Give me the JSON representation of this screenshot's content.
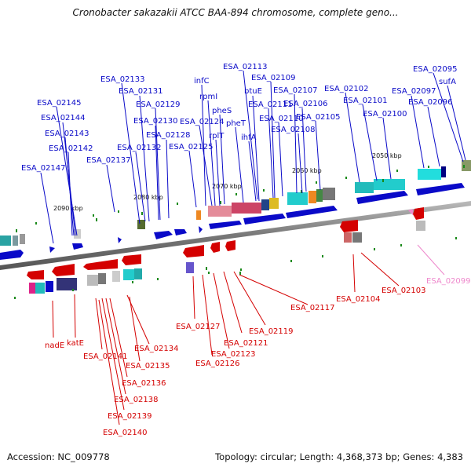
{
  "title": "Cronobacter sakazakii ATCC BAA-894 chromosome, complete geno...",
  "footer": {
    "accession": "Accession: NC_009778",
    "summary": "Topology: circular; Length: 4,368,373 bp; Genes: 4,383"
  },
  "kbp_marks": [
    "2090 kbp",
    "2080 kbp",
    "2070 kbp",
    "2060 kbp",
    "2050 kbp"
  ],
  "top_labels": [
    "ESA_02145",
    "ESA_02144",
    "ESA_02143",
    "ESA_02142",
    "ESA_02147",
    "ESA_02133",
    "ESA_02131",
    "ESA_02129",
    "ESA_02130",
    "ESA_02128",
    "ESA_02132",
    "ESA_02137",
    "ESA_02125",
    "ESA_02124",
    "infC",
    "rpmI",
    "rplT",
    "pheS",
    "pheT",
    "ihfA",
    "btuE",
    "ESA_02113",
    "ESA_02109",
    "ESA_02111",
    "ESA_02110",
    "ESA_02107",
    "ESA_02106",
    "ESA_02105",
    "ESA_02108",
    "ESA_02102",
    "ESA_02101",
    "ESA_02100",
    "ESA_02097",
    "ESA_02096",
    "ESA_02095",
    "sufA"
  ],
  "bottom_labels": [
    "nadE",
    "katE",
    "ESA_02141",
    "ESA_02134",
    "ESA_02135",
    "ESA_02136",
    "ESA_02138",
    "ESA_02139",
    "ESA_02140",
    "ESA_02127",
    "ESA_02126",
    "ESA_02123",
    "ESA_02121",
    "ESA_02119",
    "ESA_02117",
    "ESA_02104",
    "ESA_02103",
    "ESA_02099"
  ],
  "colors": {
    "forward": "#0a0ac8",
    "reverse": "#d40000",
    "highlight": "#ee88cc",
    "backbone": "#7f7f7f",
    "tick": "#1a8a1a"
  }
}
